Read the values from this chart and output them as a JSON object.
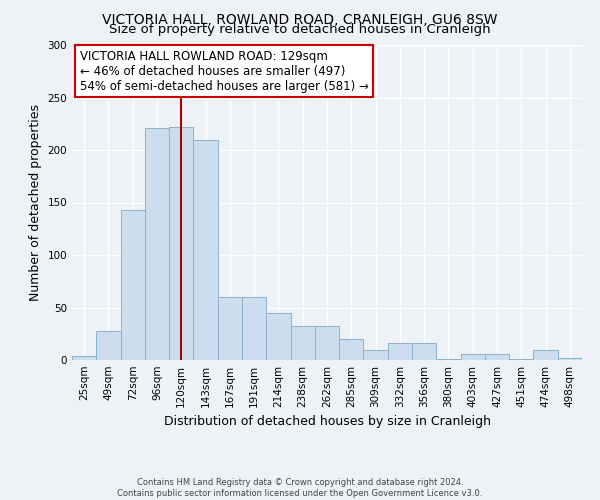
{
  "title": "VICTORIA HALL, ROWLAND ROAD, CRANLEIGH, GU6 8SW",
  "subtitle": "Size of property relative to detached houses in Cranleigh",
  "xlabel": "Distribution of detached houses by size in Cranleigh",
  "ylabel": "Number of detached properties",
  "bar_labels": [
    "25sqm",
    "49sqm",
    "72sqm",
    "96sqm",
    "120sqm",
    "143sqm",
    "167sqm",
    "191sqm",
    "214sqm",
    "238sqm",
    "262sqm",
    "285sqm",
    "309sqm",
    "332sqm",
    "356sqm",
    "380sqm",
    "403sqm",
    "427sqm",
    "451sqm",
    "474sqm",
    "498sqm"
  ],
  "bar_values": [
    4,
    28,
    143,
    221,
    222,
    210,
    60,
    60,
    45,
    32,
    32,
    20,
    10,
    16,
    16,
    1,
    6,
    6,
    1,
    10,
    2
  ],
  "bar_color": "#ccdded",
  "bar_edgecolor": "#8ab4cc",
  "vline_x": 4,
  "vline_color": "#aa0000",
  "annotation_title": "VICTORIA HALL ROWLAND ROAD: 129sqm",
  "annotation_line2": "← 46% of detached houses are smaller (497)",
  "annotation_line3": "54% of semi-detached houses are larger (581) →",
  "annotation_box_edgecolor": "#cc0000",
  "ylim": [
    0,
    300
  ],
  "yticks": [
    0,
    50,
    100,
    150,
    200,
    250,
    300
  ],
  "footer1": "Contains HM Land Registry data © Crown copyright and database right 2024.",
  "footer2": "Contains public sector information licensed under the Open Government Licence v3.0.",
  "bg_color": "#eef2f7",
  "plot_bg_color": "#eef2f7",
  "title_fontsize": 10,
  "subtitle_fontsize": 9.5,
  "axis_label_fontsize": 9,
  "tick_fontsize": 7.5,
  "annotation_fontsize": 8.5,
  "footer_fontsize": 6
}
